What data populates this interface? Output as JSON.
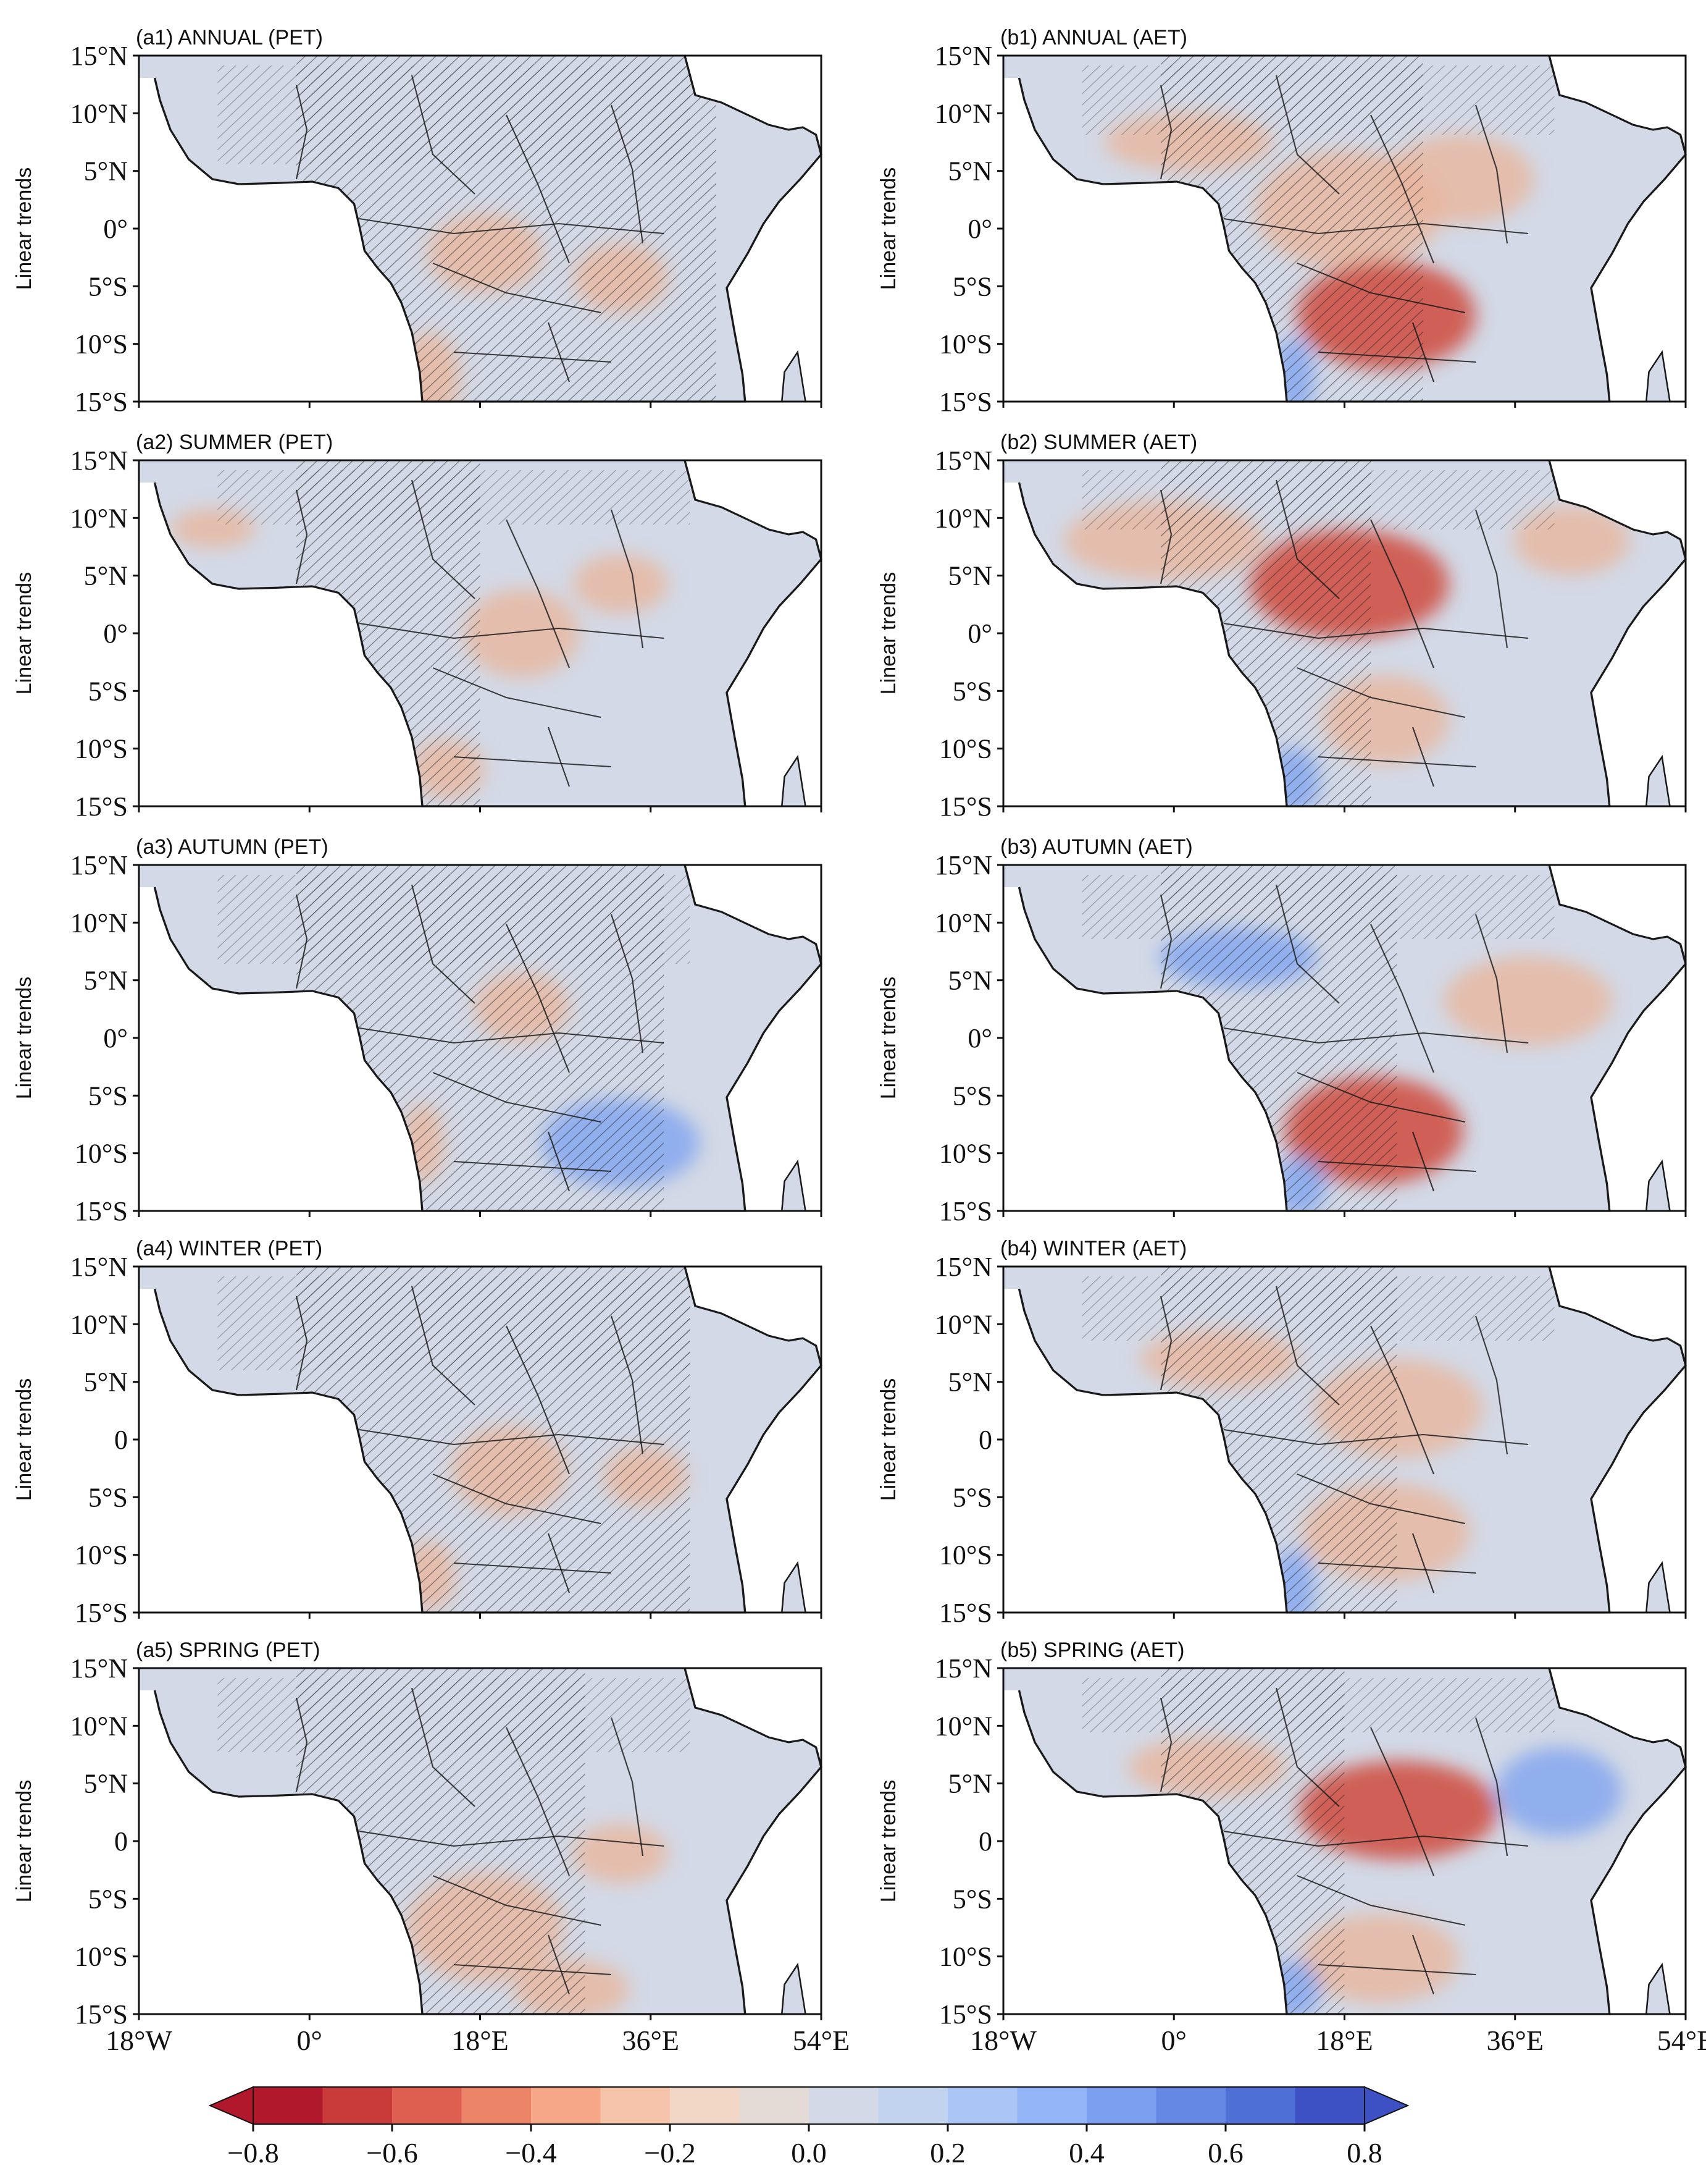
{
  "figure": {
    "ylabel": "Linear trends",
    "lat_labels": [
      "15°N",
      "10°N",
      "5°N",
      "0°",
      "5°S",
      "10°S",
      "15°S"
    ],
    "lat_labels_alt": [
      "15°N",
      "10°N",
      "5°N",
      "0",
      "5°S",
      "10°S",
      "15°S"
    ],
    "lon_labels": [
      "18°W",
      "0°",
      "18°E",
      "36°E",
      "54°E"
    ]
  },
  "panels": [
    {
      "id": "a1",
      "title": "(a1) ANNUAL (PET)",
      "variable": "PET",
      "season": "ANNUAL",
      "lat_style": "deg"
    },
    {
      "id": "b1",
      "title": "(b1) ANNUAL (AET)",
      "variable": "AET",
      "season": "ANNUAL",
      "lat_style": "deg"
    },
    {
      "id": "a2",
      "title": "(a2) SUMMER (PET)",
      "variable": "PET",
      "season": "SUMMER",
      "lat_style": "deg"
    },
    {
      "id": "b2",
      "title": "(b2) SUMMER (AET)",
      "variable": "AET",
      "season": "SUMMER",
      "lat_style": "deg"
    },
    {
      "id": "a3",
      "title": "(a3) AUTUMN (PET)",
      "variable": "PET",
      "season": "AUTUMN",
      "lat_style": "deg"
    },
    {
      "id": "b3",
      "title": "(b3) AUTUMN (AET)",
      "variable": "AET",
      "season": "AUTUMN",
      "lat_style": "deg"
    },
    {
      "id": "a4",
      "title": "(a4) WINTER (PET)",
      "variable": "PET",
      "season": "WINTER",
      "lat_style": "plain"
    },
    {
      "id": "b4",
      "title": "(b4) WINTER (AET)",
      "variable": "AET",
      "season": "WINTER",
      "lat_style": "plain"
    },
    {
      "id": "a5",
      "title": "(a5) SPRING (PET)",
      "variable": "PET",
      "season": "SPRING",
      "lat_style": "plain"
    },
    {
      "id": "b5",
      "title": "(b5) SPRING (AET)",
      "variable": "AET",
      "season": "SPRING",
      "lat_style": "plain"
    }
  ],
  "colorbar": {
    "ticks": [
      "−0.8",
      "−0.6",
      "−0.4",
      "−0.2",
      "0.0",
      "0.2",
      "0.4",
      "0.6",
      "0.8"
    ],
    "colors": [
      "#b2182b",
      "#c93a3a",
      "#de5f4f",
      "#ec8468",
      "#f5a788",
      "#f6c4aa",
      "#f2d7c6",
      "#e4dbd6",
      "#d3d9e6",
      "#c2d3ef",
      "#abc6f6",
      "#94b5f7",
      "#7d9ff0",
      "#6588e4",
      "#4d6fd6",
      "#3d51c4"
    ],
    "min": -0.8,
    "max": 0.8,
    "extend": "both"
  },
  "colors": {
    "ocean": "#ffffff",
    "land": "#d3d9e6",
    "warm": "#e9b59d",
    "warm_strong": "#cf4a3c",
    "cool": "#7fa4ef",
    "border": "#1a1a1a",
    "hatch": "#222222"
  }
}
